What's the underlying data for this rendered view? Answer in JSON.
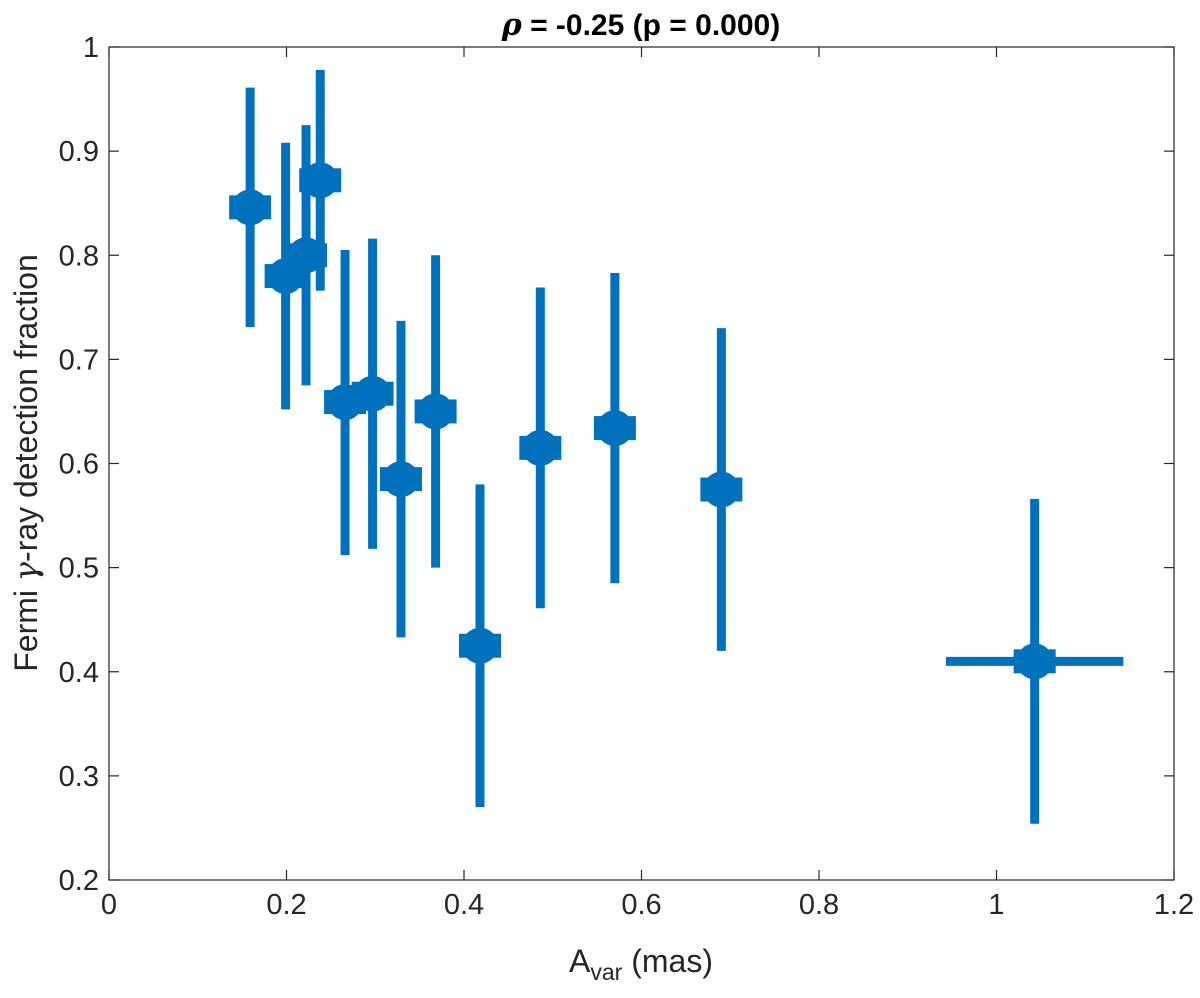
{
  "chart_data": {
    "type": "scatter",
    "title": {
      "rho_symbol": "ρ",
      "rest": " = -0.25 (p = 0.000)"
    },
    "xlabel": {
      "base": "A",
      "subscript": "var",
      "rest": " (mas)"
    },
    "ylabel": {
      "before": "Fermi ",
      "gamma": "γ",
      "after": "-ray detection fraction"
    },
    "xlim": [
      0,
      1.2
    ],
    "ylim": [
      0.2,
      1.0
    ],
    "xticks": [
      0,
      0.2,
      0.4,
      0.6,
      0.8,
      1.0,
      1.2
    ],
    "xtick_labels": [
      "0",
      "0.2",
      "0.4",
      "0.6",
      "0.8",
      "1",
      "1.2"
    ],
    "yticks": [
      0.2,
      0.3,
      0.4,
      0.5,
      0.6,
      0.7,
      0.8,
      0.9,
      1.0
    ],
    "ytick_labels": [
      "0.2",
      "0.3",
      "0.4",
      "0.5",
      "0.6",
      "0.7",
      "0.8",
      "0.9",
      "1"
    ],
    "grid": false,
    "color": "#0072BD",
    "points": [
      {
        "x": 0.159,
        "y": 0.846,
        "y_low": 0.731,
        "y_high": 0.961
      },
      {
        "x": 0.199,
        "y": 0.78,
        "y_low": 0.652,
        "y_high": 0.908
      },
      {
        "x": 0.222,
        "y": 0.8,
        "y_low": 0.675,
        "y_high": 0.925
      },
      {
        "x": 0.238,
        "y": 0.872,
        "y_low": 0.766,
        "y_high": 0.978
      },
      {
        "x": 0.266,
        "y": 0.659,
        "y_low": 0.512,
        "y_high": 0.805
      },
      {
        "x": 0.297,
        "y": 0.667,
        "y_low": 0.518,
        "y_high": 0.816
      },
      {
        "x": 0.329,
        "y": 0.585,
        "y_low": 0.433,
        "y_high": 0.737
      },
      {
        "x": 0.368,
        "y": 0.65,
        "y_low": 0.5,
        "y_high": 0.8
      },
      {
        "x": 0.418,
        "y": 0.425,
        "y_low": 0.27,
        "y_high": 0.58
      },
      {
        "x": 0.486,
        "y": 0.615,
        "y_low": 0.461,
        "y_high": 0.769
      },
      {
        "x": 0.57,
        "y": 0.634,
        "y_low": 0.485,
        "y_high": 0.783
      },
      {
        "x": 0.69,
        "y": 0.575,
        "y_low": 0.42,
        "y_high": 0.73
      },
      {
        "x": 1.043,
        "y": 0.41,
        "y_low": 0.254,
        "y_high": 0.566,
        "x_low": 0.943,
        "x_high": 1.143
      }
    ]
  }
}
